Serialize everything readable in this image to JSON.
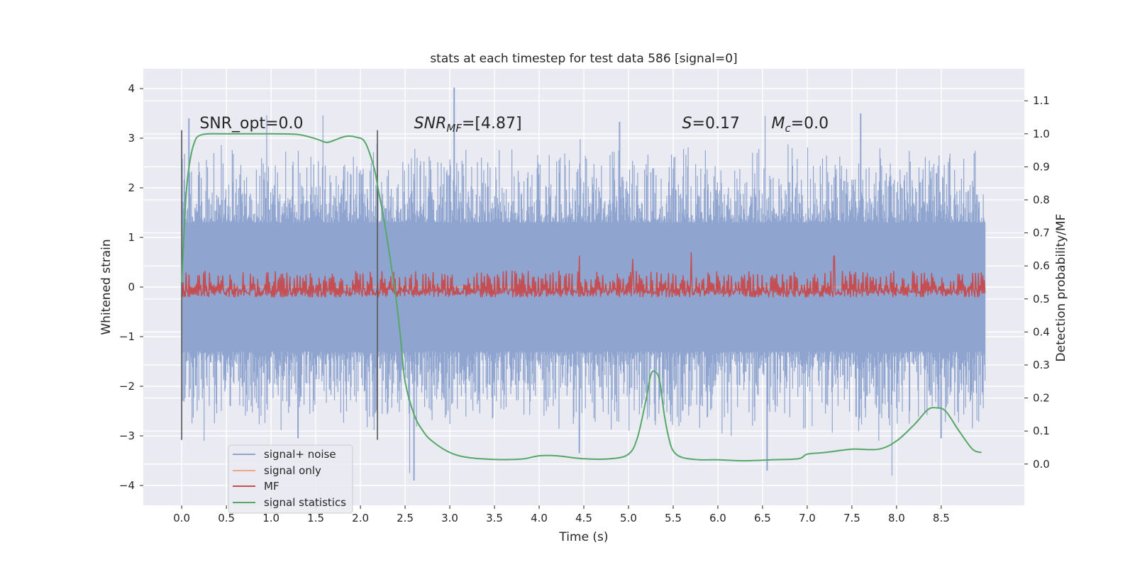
{
  "chart_data": {
    "type": "line",
    "title": "stats at each timestep for test data 586 [signal=0]",
    "xlabel": "Time (s)",
    "ylabel": "Whitened strain",
    "y2label": "Detection probability/MF",
    "xlim": [
      -0.43,
      9.43
    ],
    "ylim": [
      -4.4,
      4.4
    ],
    "y2lim": [
      -0.125,
      1.197
    ],
    "x_ticks": [
      0.0,
      0.5,
      1.0,
      1.5,
      2.0,
      2.5,
      3.0,
      3.5,
      4.0,
      4.5,
      5.0,
      5.5,
      6.0,
      6.5,
      7.0,
      7.5,
      8.0,
      8.5
    ],
    "x_tick_labels": [
      "0.0",
      "0.5",
      "1.0",
      "1.5",
      "2.0",
      "2.5",
      "3.0",
      "3.5",
      "4.0",
      "4.5",
      "5.0",
      "5.5",
      "6.0",
      "6.5",
      "7.0",
      "7.5",
      "8.0",
      "8.5"
    ],
    "y_ticks": [
      -4,
      -3,
      -2,
      -1,
      0,
      1,
      2,
      3,
      4
    ],
    "y_tick_labels": [
      "−4",
      "−3",
      "−2",
      "−1",
      "0",
      "1",
      "2",
      "3",
      "4"
    ],
    "y2_ticks": [
      0.0,
      0.1,
      0.2,
      0.3,
      0.4,
      0.5,
      0.6,
      0.7,
      0.8,
      0.9,
      1.0,
      1.1
    ],
    "y2_tick_labels": [
      "0.0",
      "0.1",
      "0.2",
      "0.3",
      "0.4",
      "0.5",
      "0.6",
      "0.7",
      "0.8",
      "0.9",
      "1.0",
      "1.1"
    ],
    "grid": true,
    "legend_position": "lower-left",
    "legend": [
      {
        "label": "signal+ noise",
        "color": "#8fa5cf"
      },
      {
        "label": "signal only",
        "color": "#e9a788"
      },
      {
        "label": "MF",
        "color": "#c44e52"
      },
      {
        "label": "signal statistics",
        "color": "#55a868"
      }
    ],
    "annotations": {
      "snr_opt": {
        "text": "SNR_opt=0.0",
        "x": 0.2,
        "y": 3.2
      },
      "snr_mf": {
        "prefix": "SNR",
        "sub": "MF",
        "suffix": "=[4.87]",
        "x": 2.6,
        "y": 3.2
      },
      "s": {
        "prefix": "S",
        "suffix": "=0.17",
        "x": 5.6,
        "y": 3.2
      },
      "mc": {
        "prefix": "M",
        "sub": "c",
        "suffix": "=0.0",
        "x": 6.6,
        "y": 3.2
      }
    },
    "vlines": [
      {
        "x": 0.0,
        "y": [
          -3.08,
          3.16
        ]
      },
      {
        "x": 2.19,
        "y": [
          -3.08,
          3.16
        ]
      }
    ],
    "series": [
      {
        "name": "signal+ noise",
        "axis": "left",
        "style": "noise",
        "x_range": [
          0.0,
          8.99
        ],
        "envelope": {
          "positive_peak_typical": 2.4,
          "negative_peak_typical": -2.4,
          "dense_band": [
            -1.3,
            1.3
          ]
        },
        "notable_peaks": [
          [
            0.08,
            3.4
          ],
          [
            0.95,
            3.46
          ],
          [
            1.58,
            3.46
          ],
          [
            3.05,
            4.02
          ],
          [
            4.9,
            3.33
          ],
          [
            6.53,
            3.45
          ],
          [
            7.6,
            3.5
          ],
          [
            9.0,
            3.68
          ],
          [
            2.55,
            -3.75
          ],
          [
            2.6,
            -3.9
          ],
          [
            4.45,
            -3.35
          ],
          [
            6.55,
            -3.7
          ],
          [
            7.95,
            -3.8
          ],
          [
            6.15,
            -3.0
          ],
          [
            0.25,
            -3.1
          ],
          [
            1.3,
            -3.05
          ],
          [
            8.5,
            -3.05
          ],
          [
            7.8,
            -3.1
          ]
        ]
      },
      {
        "name": "signal only",
        "axis": "left",
        "x": [
          0.0,
          8.99
        ],
        "y": [
          0.0,
          0.0
        ]
      },
      {
        "name": "MF",
        "axis": "right",
        "style": "noisy-band",
        "x_range": [
          0.0,
          8.99
        ],
        "baseline": 0.5,
        "typical_range": [
          0.5,
          0.585
        ],
        "notable_peaks": [
          [
            4.45,
            0.63
          ],
          [
            5.05,
            0.62
          ],
          [
            5.7,
            0.64
          ],
          [
            7.3,
            0.63
          ]
        ]
      },
      {
        "name": "signal statistics",
        "axis": "right",
        "x": [
          0.0,
          0.05,
          0.1,
          0.15,
          0.2,
          0.3,
          0.5,
          0.8,
          1.0,
          1.3,
          1.5,
          1.6,
          1.65,
          1.75,
          1.85,
          1.95,
          2.05,
          2.15,
          2.2,
          2.25,
          2.3,
          2.35,
          2.4,
          2.45,
          2.5,
          2.6,
          2.7,
          2.8,
          3.0,
          3.2,
          3.5,
          3.8,
          4.0,
          4.2,
          4.5,
          4.8,
          5.0,
          5.1,
          5.2,
          5.25,
          5.3,
          5.35,
          5.4,
          5.45,
          5.5,
          5.6,
          5.8,
          6.0,
          6.3,
          6.6,
          6.9,
          7.0,
          7.2,
          7.5,
          7.8,
          8.0,
          8.2,
          8.35,
          8.45,
          8.55,
          8.7,
          8.85,
          8.95
        ],
        "y": [
          0.55,
          0.82,
          0.93,
          0.98,
          0.995,
          1.0,
          1.0,
          1.0,
          1.0,
          0.998,
          0.985,
          0.975,
          0.975,
          0.985,
          0.993,
          0.99,
          0.975,
          0.9,
          0.83,
          0.76,
          0.68,
          0.59,
          0.5,
          0.38,
          0.25,
          0.15,
          0.1,
          0.07,
          0.035,
          0.02,
          0.014,
          0.015,
          0.025,
          0.025,
          0.016,
          0.016,
          0.03,
          0.08,
          0.2,
          0.27,
          0.28,
          0.25,
          0.15,
          0.08,
          0.04,
          0.02,
          0.013,
          0.013,
          0.01,
          0.013,
          0.016,
          0.03,
          0.035,
          0.045,
          0.045,
          0.07,
          0.12,
          0.165,
          0.17,
          0.16,
          0.1,
          0.045,
          0.035
        ]
      }
    ]
  }
}
